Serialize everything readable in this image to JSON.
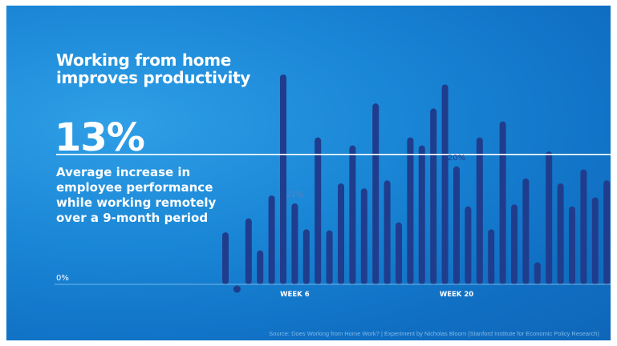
{
  "headline": "Working from home improves productivity",
  "stat": {
    "value": "13%",
    "description": "Average increase in employee performance while working remotely over a 9-month period"
  },
  "source": "Source: Does Working from Home Work? | Experiment by Nicholas Bloom (Stanford Institute for Economic Policy Research)",
  "colors": {
    "background": "#1a86d6",
    "bar": "#1f3d8c",
    "text": "#ffffff",
    "average_line": "#ffffff"
  },
  "chart_data": {
    "type": "bar",
    "title": "Working from home improves productivity",
    "y_zero_label": "0%",
    "ylim": [
      -1,
      21
    ],
    "average": 13,
    "x_tick_labels": [
      {
        "index": 6,
        "label": "WEEK 6"
      },
      {
        "index": 20,
        "label": "WEEK 20"
      }
    ],
    "data_labels": [
      {
        "index": 6,
        "label": "21%"
      },
      {
        "index": 20,
        "label": "20%"
      }
    ],
    "values": [
      5.2,
      -0.4,
      6.6,
      3.4,
      8.9,
      21.0,
      8.1,
      5.5,
      14.7,
      5.4,
      10.1,
      13.9,
      9.6,
      18.1,
      10.4,
      6.2,
      14.7,
      13.9,
      17.6,
      20.0,
      11.8,
      7.8,
      14.7,
      5.5,
      16.3,
      8.0,
      10.6,
      2.2,
      13.3,
      10.1,
      7.8,
      11.5,
      8.7,
      10.4
    ]
  }
}
